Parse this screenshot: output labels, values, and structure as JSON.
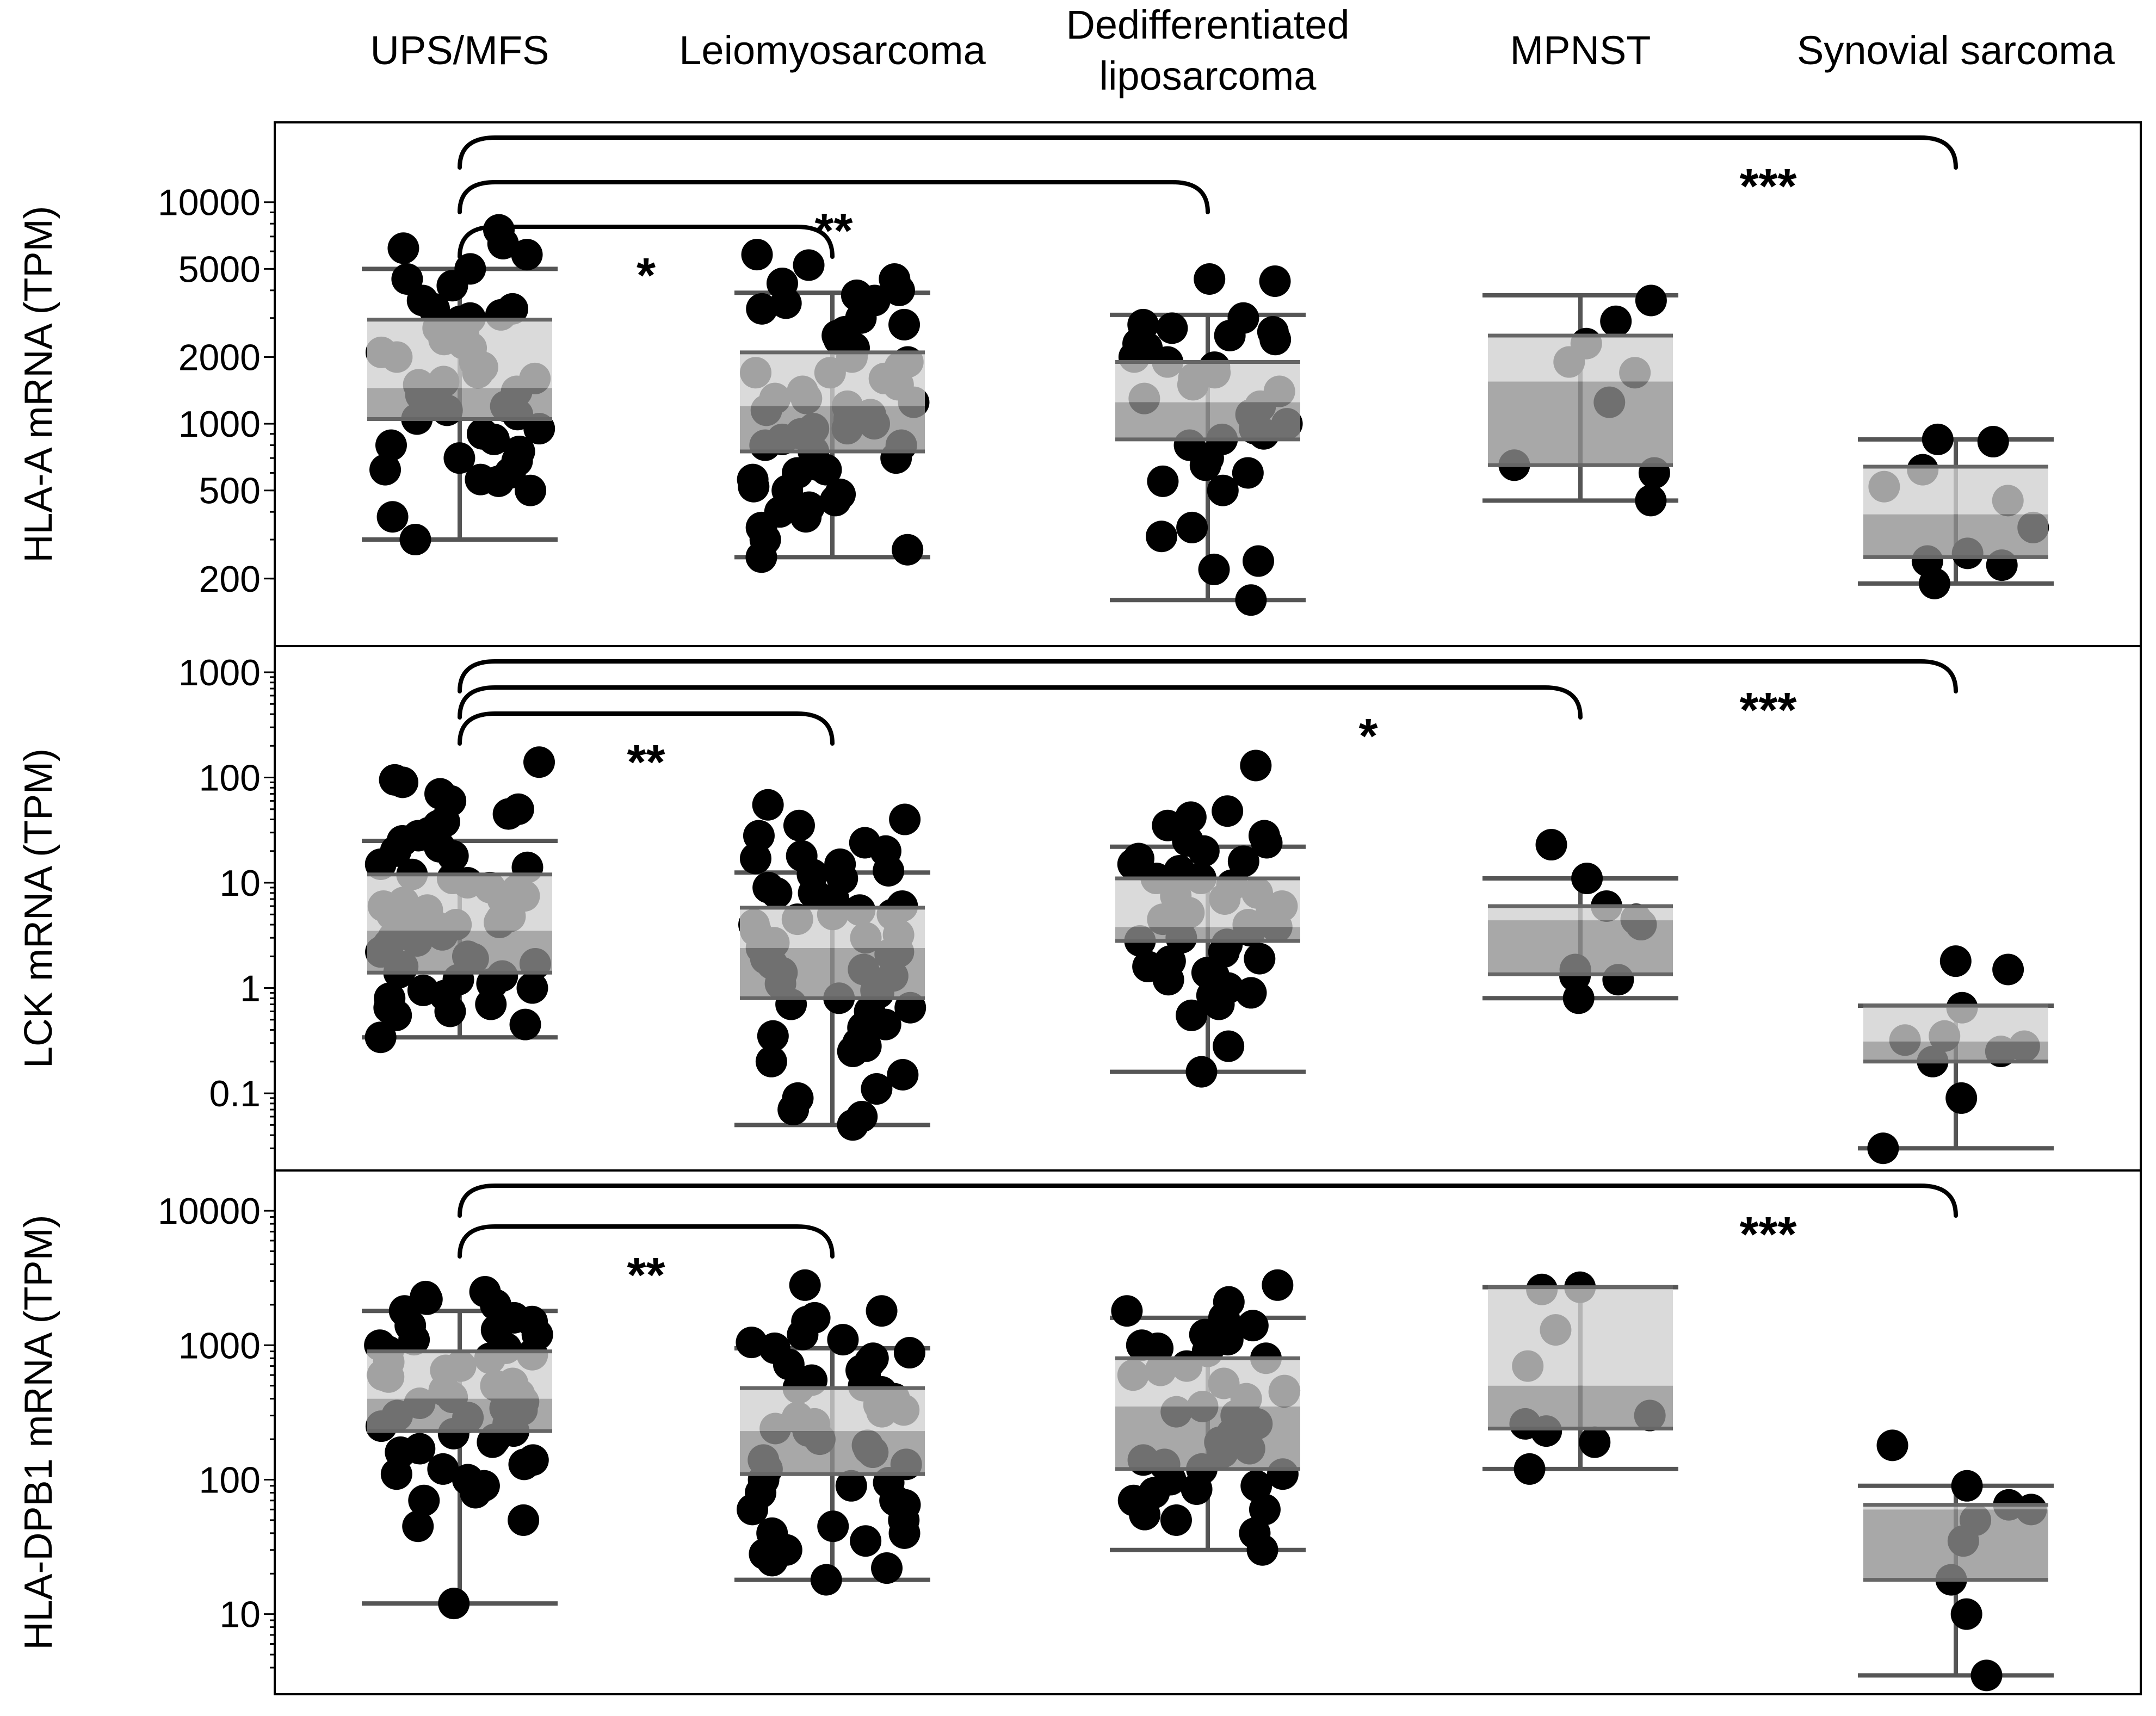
{
  "chart_data": {
    "type": "boxplot",
    "categories": [
      "UPS/MFS",
      "Leiomyosarcoma",
      "Dedifferentiated liposarcoma",
      "MPNST",
      "Synovial sarcoma"
    ],
    "category_label_lines": [
      [
        "UPS/MFS"
      ],
      [
        "Leiomyosarcoma"
      ],
      [
        "Dedifferentiated",
        "liposarcoma"
      ],
      [
        "MPNST"
      ],
      [
        "Synovial sarcoma"
      ]
    ],
    "colors": {
      "dots": "#000000",
      "box_upper": "#cfcfcf",
      "box_lower": "#8f8f8f",
      "whisker": "#555555",
      "median": "#666666"
    },
    "panels": [
      {
        "ylabel": "HLA-A mRNA (TPM)",
        "yscale": "log",
        "ylim": [
          130,
          15000
        ],
        "ticks": [
          200,
          500,
          1000,
          2000,
          5000,
          10000
        ],
        "tick_labels": [
          "200",
          "500",
          "1000",
          "2000",
          "5000",
          "10000"
        ],
        "boxes": [
          {
            "whisker_low": 300,
            "q1": 1050,
            "median": 1450,
            "q3": 2950,
            "whisker_high": 5000
          },
          {
            "whisker_low": 250,
            "q1": 750,
            "median": 1200,
            "q3": 2100,
            "whisker_high": 3900
          },
          {
            "whisker_low": 160,
            "q1": 850,
            "median": 1250,
            "q3": 1900,
            "whisker_high": 3100
          },
          {
            "whisker_low": 450,
            "q1": 650,
            "median": 1550,
            "q3": 2500,
            "whisker_high": 3800
          },
          {
            "whisker_low": 190,
            "q1": 250,
            "median": 390,
            "q3": 640,
            "whisker_high": 850
          }
        ],
        "points": [
          [
            7500,
            5000,
            4200,
            3600,
            3300,
            3100,
            2900,
            2600,
            2300,
            2100,
            1900,
            1700,
            1550,
            1400,
            1250,
            1150,
            1050,
            950,
            850,
            750,
            680,
            620,
            560,
            500,
            300,
            6500,
            6200,
            5800,
            4500,
            3300,
            3000,
            2700,
            2400,
            2200,
            2000,
            1800,
            1600,
            1500,
            1350,
            1200,
            1100,
            900,
            800,
            700,
            600,
            550,
            380
          ],
          [
            5800,
            5200,
            4500,
            4300,
            4000,
            3800,
            3600,
            3300,
            3000,
            2800,
            2600,
            2400,
            2200,
            2000,
            1900,
            1800,
            1700,
            1600,
            1500,
            1400,
            1300,
            1250,
            1200,
            1100,
            1050,
            1000,
            950,
            900,
            850,
            800,
            750,
            700,
            650,
            600,
            560,
            520,
            480,
            450,
            420,
            380,
            340,
            300,
            270,
            250,
            3500,
            2500,
            1700,
            1300,
            1150,
            950,
            800,
            620,
            500,
            400
          ],
          [
            4500,
            4400,
            3000,
            2800,
            2700,
            2600,
            2500,
            2400,
            2300,
            2200,
            2100,
            2000,
            1900,
            1800,
            1700,
            1600,
            1500,
            1400,
            1300,
            1200,
            1100,
            1000,
            950,
            900,
            850,
            800,
            700,
            650,
            600,
            550,
            500,
            340,
            310,
            240,
            220,
            160
          ],
          [
            3600,
            2900,
            2300,
            1900,
            1700,
            1250,
            650,
            600,
            450
          ],
          [
            850,
            830,
            620,
            520,
            450,
            340,
            260,
            240,
            230,
            190
          ]
        ],
        "comparisons": [
          {
            "from": 0,
            "to": 1,
            "label": "*"
          },
          {
            "from": 0,
            "to": 2,
            "label": "**"
          },
          {
            "from": 0,
            "to": 4,
            "label": "***"
          }
        ]
      },
      {
        "ylabel": "LCK mRNA (TPM)",
        "yscale": "log",
        "ylim": [
          0.024,
          1100
        ],
        "ticks": [
          0.1,
          1,
          10,
          100,
          1000
        ],
        "tick_labels": [
          "0.1",
          "1",
          "10",
          "100",
          "1000"
        ],
        "boxes": [
          {
            "whisker_low": 0.34,
            "q1": 1.4,
            "median": 3.5,
            "q3": 12,
            "whisker_high": 25
          },
          {
            "whisker_low": 0.05,
            "q1": 0.8,
            "median": 2.4,
            "q3": 5.8,
            "whisker_high": 12.5
          },
          {
            "whisker_low": 0.16,
            "q1": 2.8,
            "median": 3.8,
            "q3": 11,
            "whisker_high": 22
          },
          {
            "whisker_low": 0.8,
            "q1": 1.35,
            "median": 4.4,
            "q3": 6,
            "whisker_high": 11
          },
          {
            "whisker_low": 0.03,
            "q1": 0.2,
            "median": 0.31,
            "q3": 0.68,
            "whisker_high": 0.68
          }
        ],
        "points": [
          [
            140,
            95,
            60,
            45,
            38,
            30,
            25,
            22,
            18,
            15,
            12,
            10,
            8.5,
            7,
            6,
            5,
            4.5,
            4,
            3.5,
            3,
            2.6,
            2.2,
            1.9,
            1.6,
            1.3,
            1.1,
            0.95,
            0.8,
            0.7,
            0.6,
            0.34,
            90,
            70,
            50,
            35,
            28,
            20,
            14,
            11,
            9,
            7.5,
            6.5,
            5.5,
            4.8,
            4.2,
            3.8,
            3.2,
            2.8,
            2.4,
            2,
            1.7,
            1.4,
            1.2,
            1,
            0.85,
            0.65,
            0.55,
            0.45
          ],
          [
            55,
            40,
            35,
            28,
            24,
            20,
            17,
            15,
            13,
            11,
            9,
            8,
            7,
            6,
            5.5,
            5,
            4.5,
            4,
            3.5,
            3,
            2.7,
            2.4,
            2.1,
            1.9,
            1.7,
            1.5,
            1.3,
            1.1,
            1,
            0.9,
            0.8,
            0.7,
            0.6,
            0.5,
            0.42,
            0.35,
            0.3,
            0.25,
            0.2,
            0.15,
            0.11,
            0.09,
            0.07,
            0.06,
            0.05,
            18,
            12,
            8,
            5,
            3.2,
            2.2,
            1.4,
            0.95,
            0.65,
            0.45,
            0.28
          ],
          [
            130,
            48,
            42,
            35,
            28,
            24,
            20,
            17,
            15,
            13,
            11,
            9.5,
            8,
            7,
            6,
            5,
            4.5,
            4,
            3.5,
            3,
            2.6,
            2.2,
            1.9,
            1.6,
            1.4,
            1.2,
            1,
            0.85,
            0.7,
            0.55,
            0.28,
            0.16,
            25,
            16,
            11,
            7.5,
            5.2,
            3.8,
            2.8,
            1.8,
            1.3,
            0.9
          ],
          [
            23,
            11,
            6,
            4.5,
            4,
            1.5,
            1.3,
            1.2,
            0.8
          ],
          [
            1.8,
            1.5,
            0.65,
            0.35,
            0.32,
            0.28,
            0.25,
            0.2,
            0.09,
            0.03
          ]
        ],
        "comparisons": [
          {
            "from": 0,
            "to": 1,
            "label": "**"
          },
          {
            "from": 0,
            "to": 3,
            "label": "*"
          },
          {
            "from": 0,
            "to": 4,
            "label": "***"
          }
        ]
      },
      {
        "ylabel": "HLA-DPB1 mRNA (TPM)",
        "yscale": "log",
        "ylim": [
          3.2,
          14000
        ],
        "ticks": [
          10,
          100,
          1000,
          10000
        ],
        "tick_labels": [
          "10",
          "100",
          "1000",
          "10000"
        ],
        "boxes": [
          {
            "whisker_low": 12,
            "q1": 230,
            "median": 400,
            "q3": 900,
            "whisker_high": 1800
          },
          {
            "whisker_low": 18,
            "q1": 110,
            "median": 230,
            "q3": 480,
            "whisker_high": 950
          },
          {
            "whisker_low": 30,
            "q1": 120,
            "median": 350,
            "q3": 800,
            "whisker_high": 1600
          },
          {
            "whisker_low": 120,
            "q1": 240,
            "median": 500,
            "q3": 2700,
            "whisker_high": 2700
          },
          {
            "whisker_low": 3.5,
            "q1": 18,
            "median": 60,
            "q3": 65,
            "whisker_high": 90
          }
        ],
        "points": [
          [
            2500,
            2200,
            1800,
            1500,
            1300,
            1100,
            950,
            850,
            750,
            650,
            580,
            520,
            460,
            410,
            370,
            330,
            290,
            250,
            220,
            190,
            160,
            130,
            110,
            90,
            70,
            50,
            12,
            2300,
            2000,
            1600,
            1400,
            1200,
            1000,
            900,
            800,
            700,
            600,
            500,
            430,
            380,
            340,
            300,
            260,
            230,
            200,
            170,
            140,
            120,
            100,
            80,
            45
          ],
          [
            2800,
            1800,
            1600,
            1200,
            1050,
            950,
            880,
            800,
            720,
            650,
            600,
            550,
            500,
            450,
            400,
            360,
            320,
            290,
            260,
            230,
            200,
            180,
            160,
            140,
            120,
            100,
            90,
            80,
            70,
            60,
            50,
            45,
            40,
            35,
            30,
            28,
            25,
            22,
            18,
            1500,
            1100,
            750,
            480,
            330,
            240,
            170,
            130,
            95,
            65,
            40
          ],
          [
            2800,
            2100,
            1600,
            1400,
            1200,
            1100,
            1000,
            900,
            800,
            700,
            600,
            520,
            460,
            400,
            350,
            300,
            260,
            220,
            190,
            160,
            140,
            120,
            100,
            90,
            80,
            70,
            60,
            50,
            40,
            30,
            1800,
            1300,
            950,
            650,
            450,
            320,
            230,
            170,
            130,
            110,
            85,
            55
          ],
          [
            2700,
            2600,
            1300,
            700,
            300,
            260,
            230,
            190,
            120
          ],
          [
            180,
            90,
            65,
            60,
            50,
            35,
            18,
            10,
            3.5
          ]
        ],
        "comparisons": [
          {
            "from": 0,
            "to": 1,
            "label": "**"
          },
          {
            "from": 0,
            "to": 4,
            "label": "***"
          }
        ]
      }
    ]
  }
}
